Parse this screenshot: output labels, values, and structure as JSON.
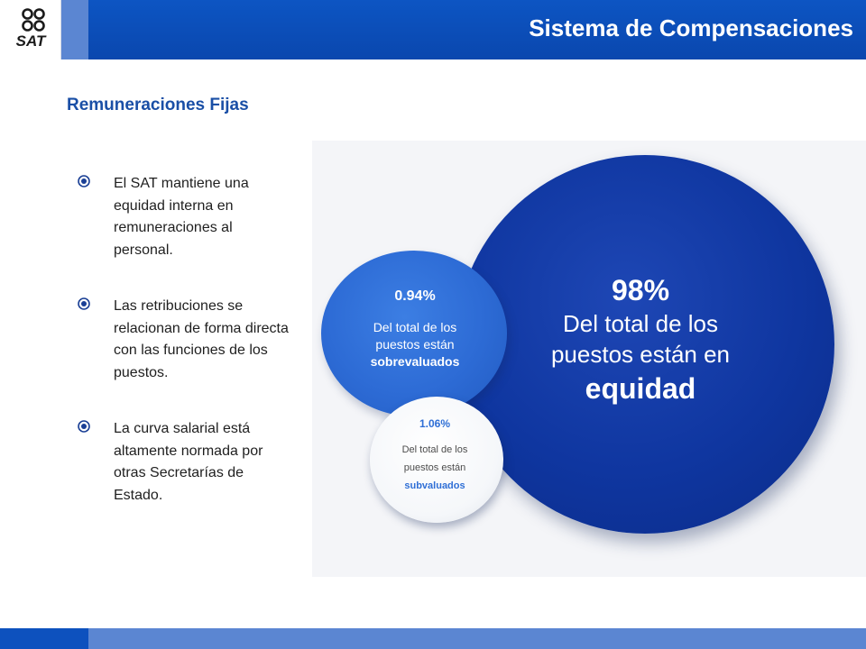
{
  "header": {
    "logo_text": "SAT",
    "title": "Sistema de Compensaciones"
  },
  "section": {
    "subtitle": "Remuneraciones Fijas"
  },
  "bullets": [
    {
      "text": "El SAT mantiene una equidad interna en remuneraciones al personal."
    },
    {
      "text": "Las retribuciones se relacionan de forma directa con las funciones de los puestos."
    },
    {
      "text": "La curva salarial está altamente normada por otras Secretarías de Estado."
    }
  ],
  "circles": {
    "equity": {
      "percent": "98%",
      "desc_line1": "Del total de los",
      "desc_line2": "puestos están en",
      "status": "equidad",
      "share": 98,
      "color": "#0f36a0"
    },
    "over": {
      "percent": "0.94%",
      "desc_line1": "Del total de los",
      "desc_line2": "puestos están",
      "status": "sobrevaluados",
      "share": 0.94,
      "color": "#2d6bd5"
    },
    "under": {
      "percent": "1.06%",
      "desc_line1": "Del total de los",
      "desc_line2": "puestos están",
      "status": "subvaluados",
      "share": 1.06,
      "color": "#2f6fd6"
    }
  },
  "colors": {
    "brand_blue": "#0d55c3",
    "light_blue": "#5b86d2",
    "subtitle_blue": "#1a4fa6"
  },
  "icons": {
    "bullet": "circle-dot-icon",
    "logo": "sat-logo-dots-icon"
  }
}
